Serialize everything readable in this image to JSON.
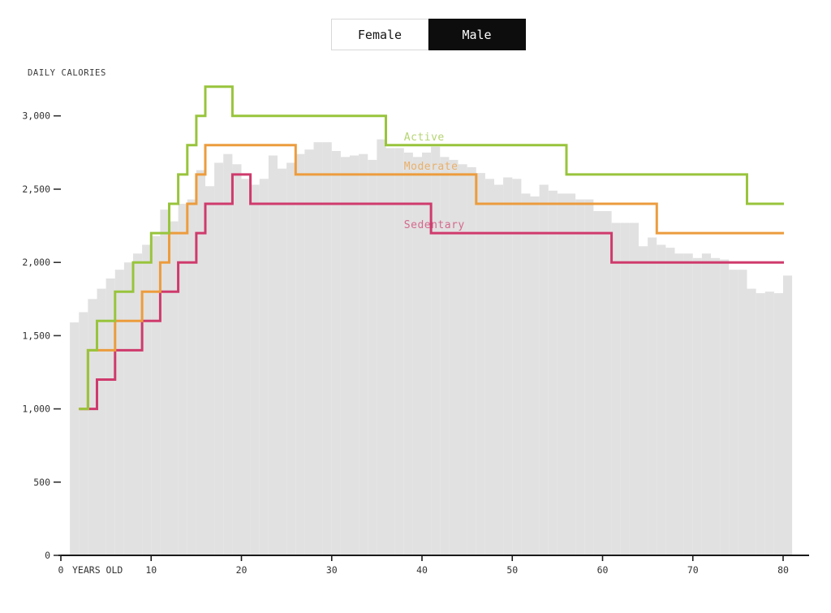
{
  "toggle": {
    "options": [
      {
        "label": "Female",
        "selected": false
      },
      {
        "label": "Male",
        "selected": true
      }
    ]
  },
  "chart_data": {
    "type": "line",
    "title": "DAILY CALORIES",
    "x_axis": {
      "label": "YEARS OLD",
      "ticks": [
        0,
        10,
        20,
        30,
        40,
        50,
        60,
        70,
        80
      ],
      "range": [
        0,
        80
      ]
    },
    "y_axis": {
      "range": [
        0,
        3200
      ],
      "ticks": [
        {
          "value": 0,
          "label": "0"
        },
        {
          "value": 500,
          "label": "500"
        },
        {
          "value": 1000,
          "label": "1,000"
        },
        {
          "value": 1500,
          "label": "1,500"
        },
        {
          "value": 2000,
          "label": "2,000"
        },
        {
          "value": 2500,
          "label": "2,500"
        },
        {
          "value": 3000,
          "label": "3,000"
        }
      ]
    },
    "series": [
      {
        "name": "Active",
        "color": "#98c43c",
        "steps": [
          [
            2,
            1000
          ],
          [
            3,
            1400
          ],
          [
            4,
            1600
          ],
          [
            6,
            1800
          ],
          [
            8,
            2000
          ],
          [
            10,
            2200
          ],
          [
            12,
            2400
          ],
          [
            13,
            2600
          ],
          [
            14,
            2800
          ],
          [
            15,
            3000
          ],
          [
            16,
            3200
          ],
          [
            19,
            3000
          ],
          [
            36,
            2800
          ],
          [
            56,
            2600
          ],
          [
            76,
            2400
          ]
        ],
        "end_age": 80
      },
      {
        "name": "Moderate",
        "color": "#ec9c3d",
        "steps": [
          [
            2,
            1000
          ],
          [
            3,
            1400
          ],
          [
            6,
            1600
          ],
          [
            9,
            1800
          ],
          [
            11,
            2000
          ],
          [
            12,
            2200
          ],
          [
            14,
            2400
          ],
          [
            15,
            2600
          ],
          [
            16,
            2800
          ],
          [
            26,
            2600
          ],
          [
            46,
            2400
          ],
          [
            66,
            2200
          ]
        ],
        "end_age": 80
      },
      {
        "name": "Sedentary",
        "color": "#cf3a6c",
        "steps": [
          [
            2,
            1000
          ],
          [
            4,
            1200
          ],
          [
            6,
            1400
          ],
          [
            9,
            1600
          ],
          [
            11,
            1800
          ],
          [
            13,
            2000
          ],
          [
            15,
            2200
          ],
          [
            16,
            2400
          ],
          [
            19,
            2600
          ],
          [
            21,
            2400
          ],
          [
            41,
            2200
          ],
          [
            61,
            2000
          ]
        ],
        "end_age": 80
      }
    ],
    "background_distribution": {
      "color": "#e1e1e1",
      "start_age": 1,
      "values": [
        1590,
        1660,
        1750,
        1820,
        1890,
        1950,
        2000,
        2060,
        2120,
        2180,
        2360,
        2280,
        2400,
        2430,
        2630,
        2520,
        2680,
        2740,
        2670,
        2570,
        2530,
        2570,
        2730,
        2640,
        2680,
        2740,
        2770,
        2820,
        2820,
        2760,
        2720,
        2730,
        2740,
        2700,
        2840,
        2780,
        2780,
        2750,
        2720,
        2750,
        2790,
        2720,
        2700,
        2670,
        2650,
        2610,
        2570,
        2530,
        2580,
        2570,
        2470,
        2450,
        2530,
        2490,
        2470,
        2470,
        2430,
        2430,
        2350,
        2350,
        2270,
        2270,
        2270,
        2110,
        2170,
        2120,
        2100,
        2060,
        2060,
        2030,
        2060,
        2030,
        2020,
        1950,
        1950,
        1820,
        1790,
        1800,
        1790,
        1910
      ]
    }
  }
}
